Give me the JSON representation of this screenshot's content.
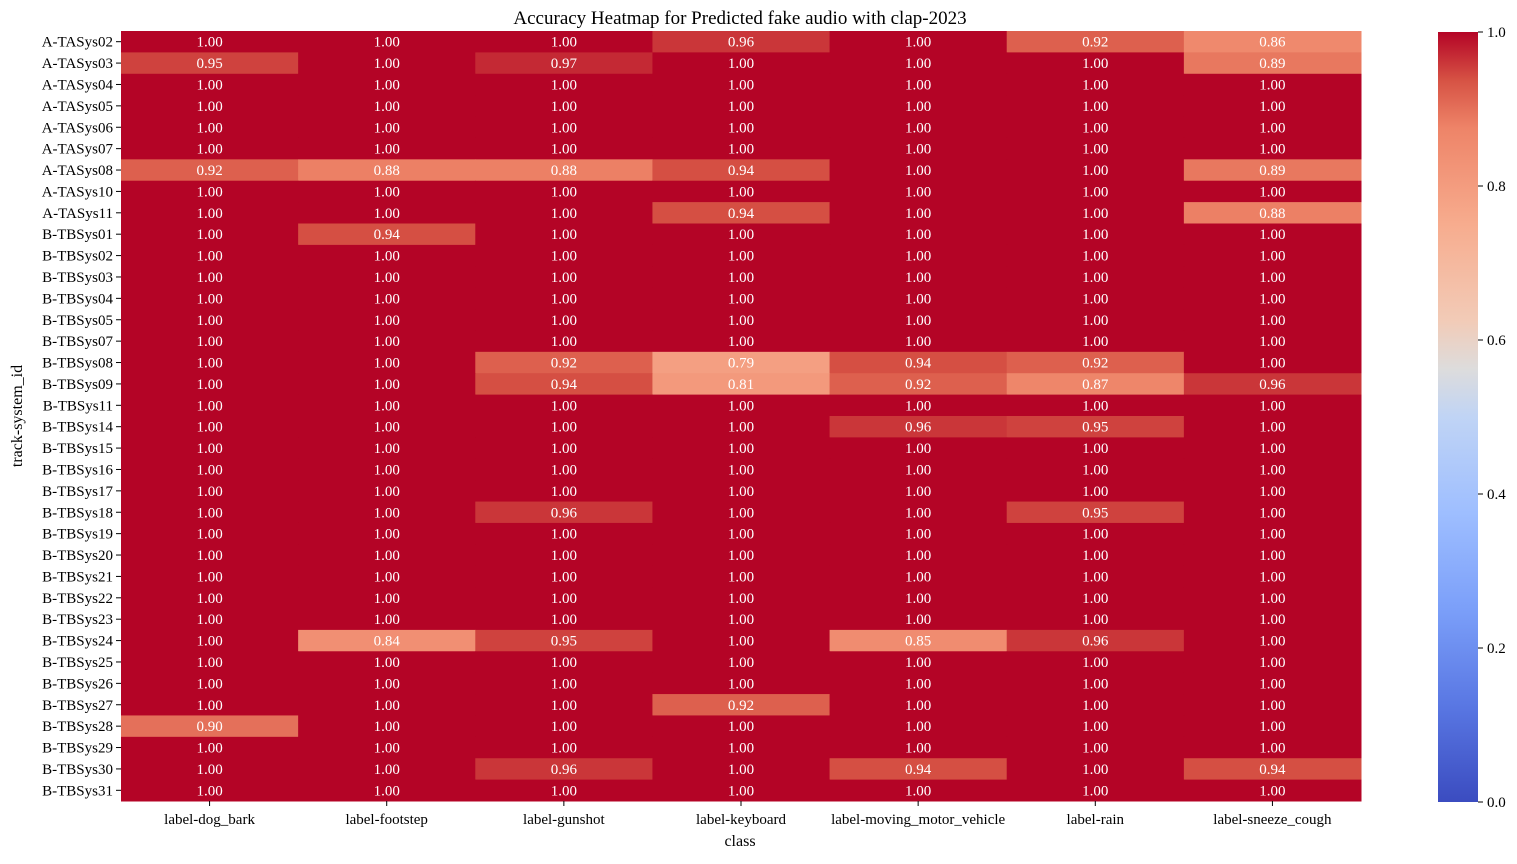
{
  "chart_data": {
    "type": "heatmap",
    "title": "Accuracy Heatmap for Predicted fake audio with clap-2023",
    "xlabel": "class",
    "ylabel": "track-system_id",
    "columns": [
      "label-dog_bark",
      "label-footstep",
      "label-gunshot",
      "label-keyboard",
      "label-moving_motor_vehicle",
      "label-rain",
      "label-sneeze_cough"
    ],
    "rows": [
      "A-TASys02",
      "A-TASys03",
      "A-TASys04",
      "A-TASys05",
      "A-TASys06",
      "A-TASys07",
      "A-TASys08",
      "A-TASys10",
      "A-TASys11",
      "B-TBSys01",
      "B-TBSys02",
      "B-TBSys03",
      "B-TBSys04",
      "B-TBSys05",
      "B-TBSys07",
      "B-TBSys08",
      "B-TBSys09",
      "B-TBSys11",
      "B-TBSys14",
      "B-TBSys15",
      "B-TBSys16",
      "B-TBSys17",
      "B-TBSys18",
      "B-TBSys19",
      "B-TBSys20",
      "B-TBSys21",
      "B-TBSys22",
      "B-TBSys23",
      "B-TBSys24",
      "B-TBSys25",
      "B-TBSys26",
      "B-TBSys27",
      "B-TBSys28",
      "B-TBSys29",
      "B-TBSys30",
      "B-TBSys31"
    ],
    "values": [
      [
        1.0,
        1.0,
        1.0,
        0.96,
        1.0,
        0.92,
        0.86
      ],
      [
        0.95,
        1.0,
        0.97,
        1.0,
        1.0,
        1.0,
        0.89
      ],
      [
        1.0,
        1.0,
        1.0,
        1.0,
        1.0,
        1.0,
        1.0
      ],
      [
        1.0,
        1.0,
        1.0,
        1.0,
        1.0,
        1.0,
        1.0
      ],
      [
        1.0,
        1.0,
        1.0,
        1.0,
        1.0,
        1.0,
        1.0
      ],
      [
        1.0,
        1.0,
        1.0,
        1.0,
        1.0,
        1.0,
        1.0
      ],
      [
        0.92,
        0.88,
        0.88,
        0.94,
        1.0,
        1.0,
        0.89
      ],
      [
        1.0,
        1.0,
        1.0,
        1.0,
        1.0,
        1.0,
        1.0
      ],
      [
        1.0,
        1.0,
        1.0,
        0.94,
        1.0,
        1.0,
        0.88
      ],
      [
        1.0,
        0.94,
        1.0,
        1.0,
        1.0,
        1.0,
        1.0
      ],
      [
        1.0,
        1.0,
        1.0,
        1.0,
        1.0,
        1.0,
        1.0
      ],
      [
        1.0,
        1.0,
        1.0,
        1.0,
        1.0,
        1.0,
        1.0
      ],
      [
        1.0,
        1.0,
        1.0,
        1.0,
        1.0,
        1.0,
        1.0
      ],
      [
        1.0,
        1.0,
        1.0,
        1.0,
        1.0,
        1.0,
        1.0
      ],
      [
        1.0,
        1.0,
        1.0,
        1.0,
        1.0,
        1.0,
        1.0
      ],
      [
        1.0,
        1.0,
        0.92,
        0.79,
        0.94,
        0.92,
        1.0
      ],
      [
        1.0,
        1.0,
        0.94,
        0.81,
        0.92,
        0.87,
        0.96
      ],
      [
        1.0,
        1.0,
        1.0,
        1.0,
        1.0,
        1.0,
        1.0
      ],
      [
        1.0,
        1.0,
        1.0,
        1.0,
        0.96,
        0.95,
        1.0
      ],
      [
        1.0,
        1.0,
        1.0,
        1.0,
        1.0,
        1.0,
        1.0
      ],
      [
        1.0,
        1.0,
        1.0,
        1.0,
        1.0,
        1.0,
        1.0
      ],
      [
        1.0,
        1.0,
        1.0,
        1.0,
        1.0,
        1.0,
        1.0
      ],
      [
        1.0,
        1.0,
        0.96,
        1.0,
        1.0,
        0.95,
        1.0
      ],
      [
        1.0,
        1.0,
        1.0,
        1.0,
        1.0,
        1.0,
        1.0
      ],
      [
        1.0,
        1.0,
        1.0,
        1.0,
        1.0,
        1.0,
        1.0
      ],
      [
        1.0,
        1.0,
        1.0,
        1.0,
        1.0,
        1.0,
        1.0
      ],
      [
        1.0,
        1.0,
        1.0,
        1.0,
        1.0,
        1.0,
        1.0
      ],
      [
        1.0,
        1.0,
        1.0,
        1.0,
        1.0,
        1.0,
        1.0
      ],
      [
        1.0,
        0.84,
        0.95,
        1.0,
        0.85,
        0.96,
        1.0
      ],
      [
        1.0,
        1.0,
        1.0,
        1.0,
        1.0,
        1.0,
        1.0
      ],
      [
        1.0,
        1.0,
        1.0,
        1.0,
        1.0,
        1.0,
        1.0
      ],
      [
        1.0,
        1.0,
        1.0,
        0.92,
        1.0,
        1.0,
        1.0
      ],
      [
        0.9,
        1.0,
        1.0,
        1.0,
        1.0,
        1.0,
        1.0
      ],
      [
        1.0,
        1.0,
        1.0,
        1.0,
        1.0,
        1.0,
        1.0
      ],
      [
        1.0,
        1.0,
        0.96,
        1.0,
        0.94,
        1.0,
        0.94
      ],
      [
        1.0,
        1.0,
        1.0,
        1.0,
        1.0,
        1.0,
        1.0
      ]
    ],
    "value_format": "0.00",
    "colormap": "coolwarm",
    "color_range": [
      0.0,
      1.0
    ],
    "colorbar_ticks": [
      "0.0",
      "0.2",
      "0.4",
      "0.6",
      "0.8",
      "1.0"
    ],
    "colorbar_tick_values": [
      0.0,
      0.2,
      0.4,
      0.6,
      0.8,
      1.0
    ],
    "grid": false,
    "legend": "colorbar-right"
  }
}
